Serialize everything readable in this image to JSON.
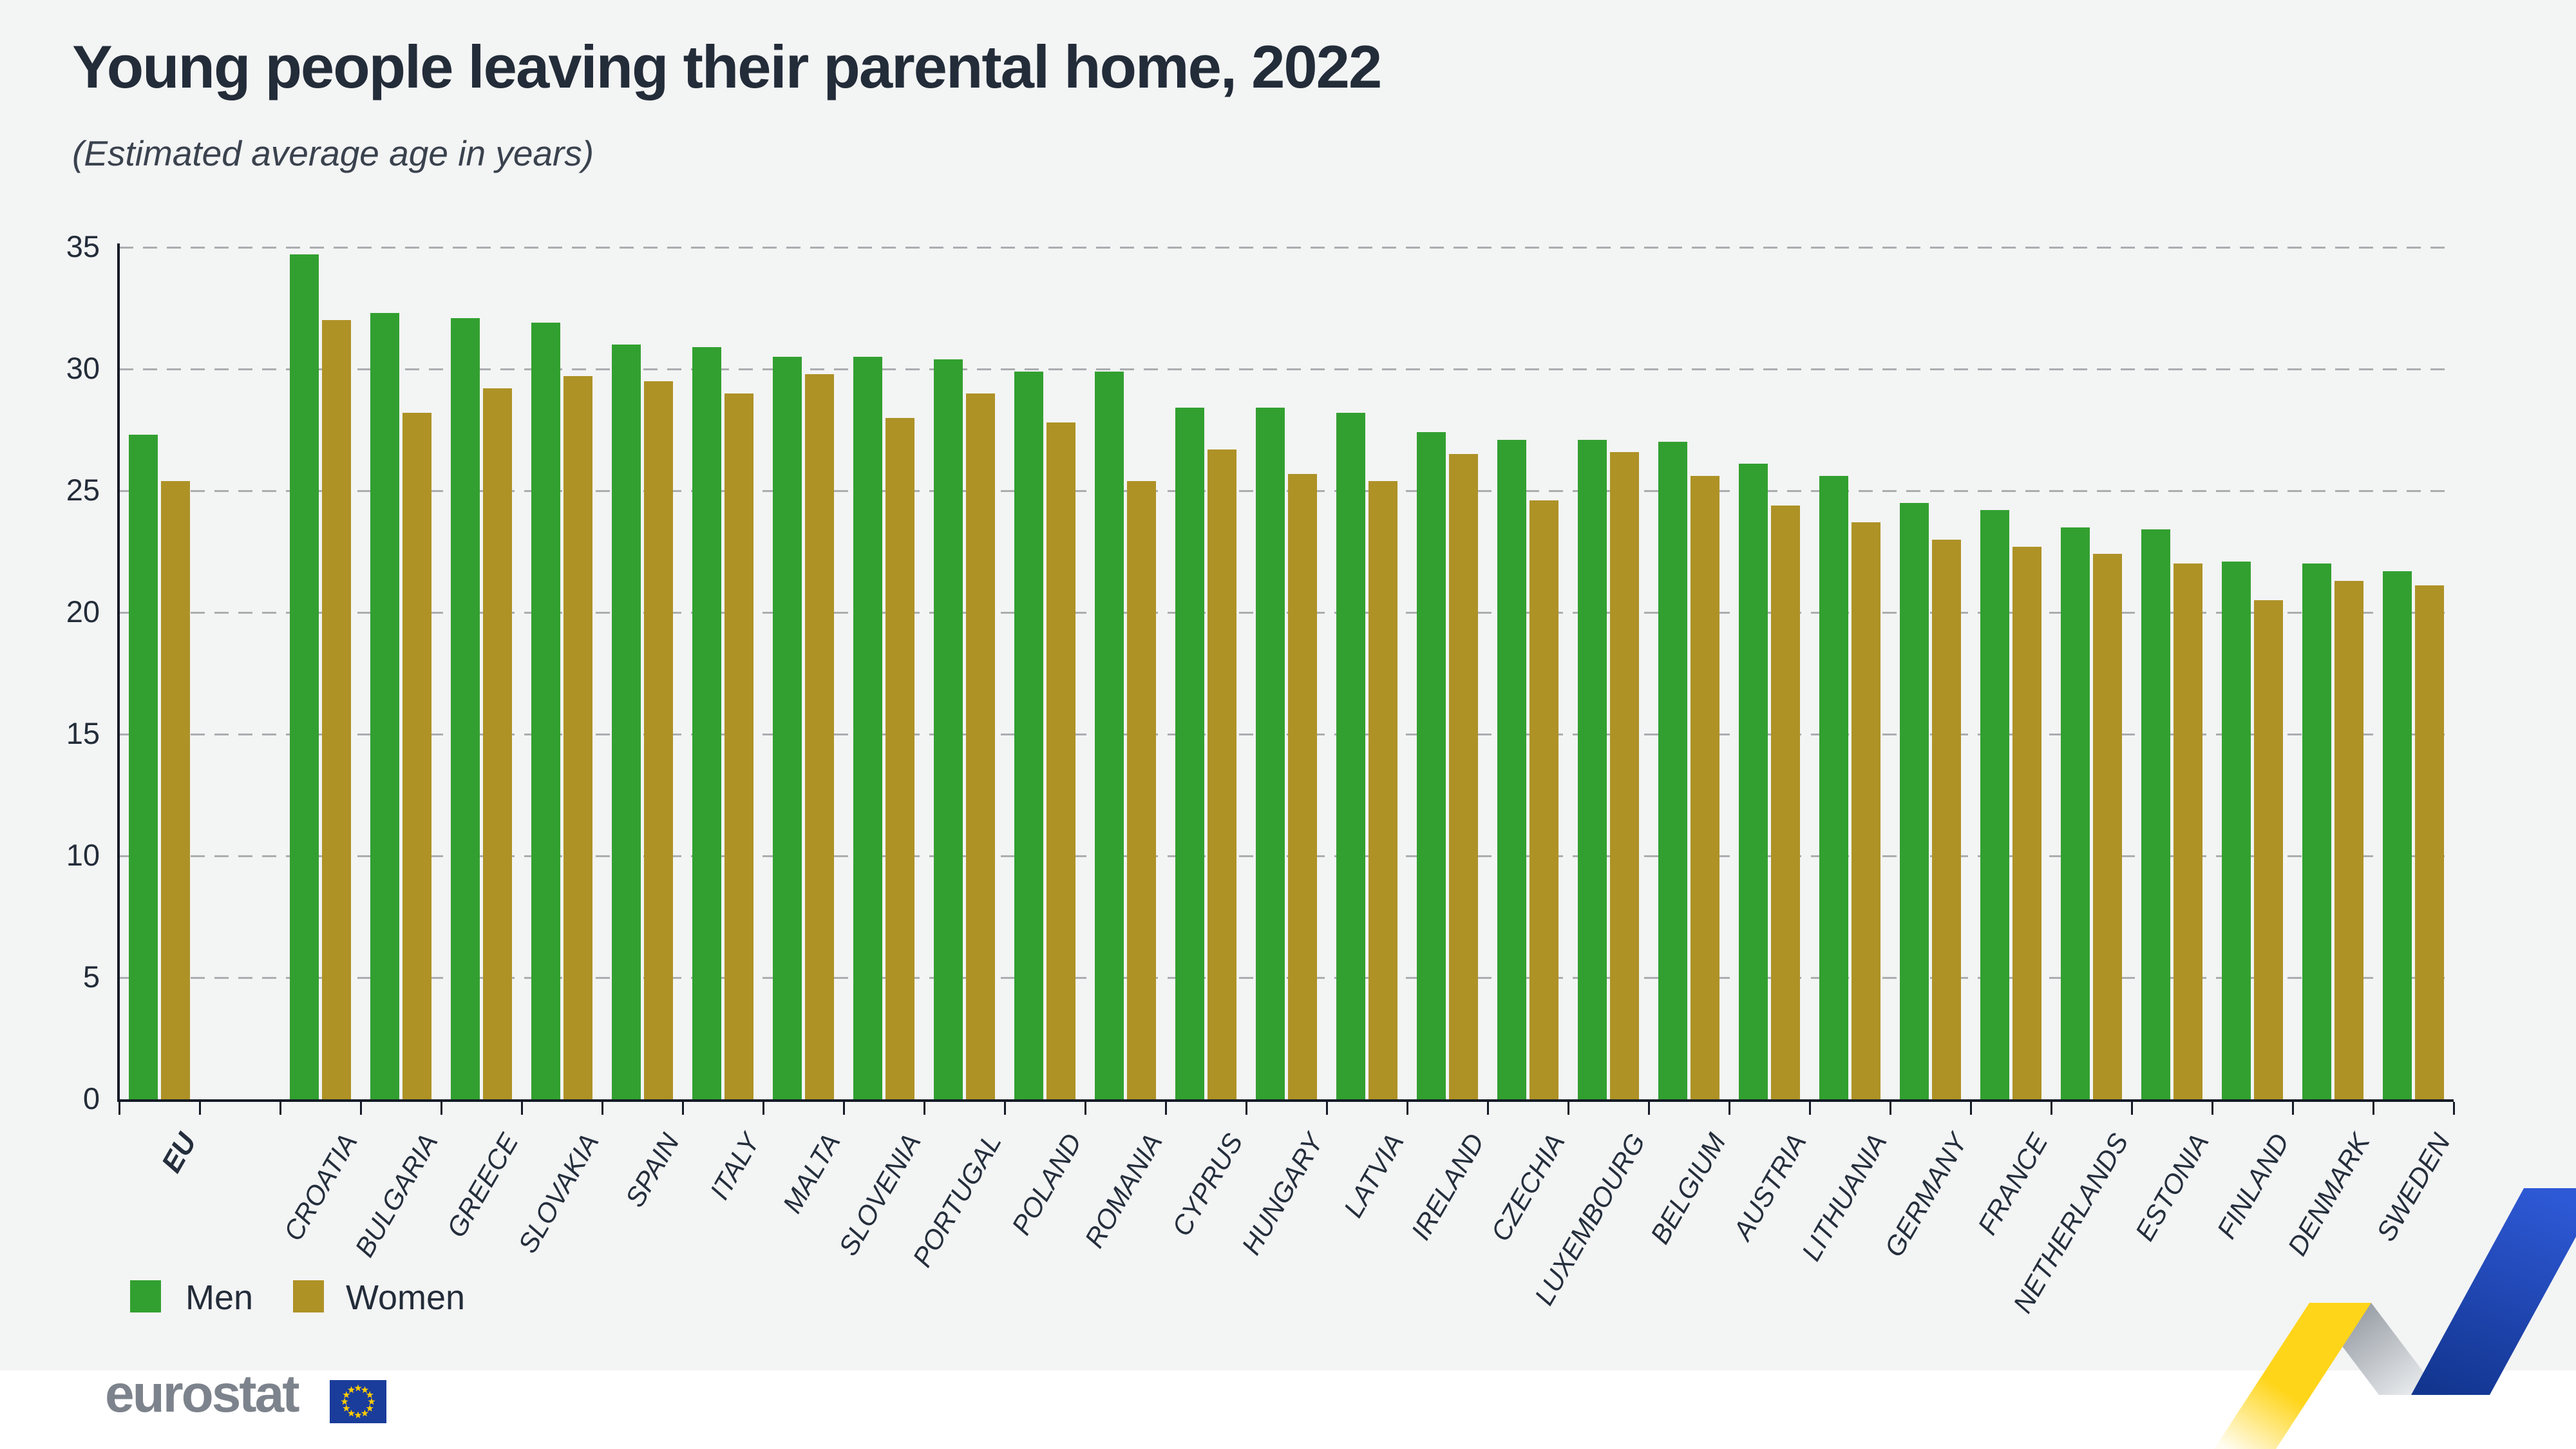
{
  "title": "Young people leaving their parental home, 2022",
  "subtitle": "(Estimated average age in years)",
  "legend": {
    "men_label": "Men",
    "women_label": "Women"
  },
  "footer": {
    "logo_text": "eurostat"
  },
  "colors": {
    "background": "#F3F4F4",
    "footer_band": "#FFFFFF",
    "men": "#32A030",
    "women": "#AE9226",
    "title_text": "#232C39",
    "axis_text": "#242E3C",
    "gridline": "#ABADAF",
    "axis_line": "#141B26",
    "logo_gray": "#7D838C",
    "flag_blue": "#1A3C9B",
    "star_yellow": "#FFCC00",
    "ribbon_yellow": "#FFD51A",
    "ribbon_blue_top": "#2E59D6",
    "ribbon_blue_bottom": "#12358F",
    "ribbon_gray": "#8E959D"
  },
  "chart_data": {
    "type": "bar",
    "title": "Young people leaving their parental home, 2022",
    "subtitle": "(Estimated average age in years)",
    "xlabel": "",
    "ylabel": "",
    "ylim": [
      0,
      35
    ],
    "yticks": [
      0,
      5,
      10,
      15,
      20,
      25,
      30,
      35
    ],
    "grid": "horizontal-dashed",
    "legend_position": "bottom-left",
    "gap_after_first_category": true,
    "categories": [
      "EU",
      "CROATIA",
      "BULGARIA",
      "GREECE",
      "SLOVAKIA",
      "SPAIN",
      "ITALY",
      "MALTA",
      "SLOVENIA",
      "PORTUGAL",
      "POLAND",
      "ROMANIA",
      "CYPRUS",
      "HUNGARY",
      "LATVIA",
      "IRELAND",
      "CZECHIA",
      "LUXEMBOURG",
      "BELGIUM",
      "AUSTRIA",
      "LITHUANIA",
      "GERMANY",
      "FRANCE",
      "NETHERLANDS",
      "ESTONIA",
      "FINLAND",
      "DENMARK",
      "SWEDEN"
    ],
    "series": [
      {
        "name": "Men",
        "values": [
          27.3,
          34.7,
          32.3,
          32.1,
          31.9,
          31.0,
          30.9,
          30.5,
          30.5,
          30.4,
          29.9,
          29.9,
          28.4,
          28.4,
          28.2,
          27.4,
          27.1,
          27.1,
          27.0,
          26.1,
          25.6,
          24.5,
          24.2,
          23.5,
          23.4,
          22.1,
          22.0,
          21.7
        ]
      },
      {
        "name": "Women",
        "values": [
          25.4,
          32.0,
          28.2,
          29.2,
          29.7,
          29.5,
          29.0,
          29.8,
          28.0,
          29.0,
          27.8,
          25.4,
          26.7,
          25.7,
          25.4,
          26.5,
          24.6,
          26.6,
          25.6,
          24.4,
          23.7,
          23.0,
          22.7,
          22.4,
          22.0,
          20.5,
          21.3,
          21.1
        ]
      }
    ]
  }
}
